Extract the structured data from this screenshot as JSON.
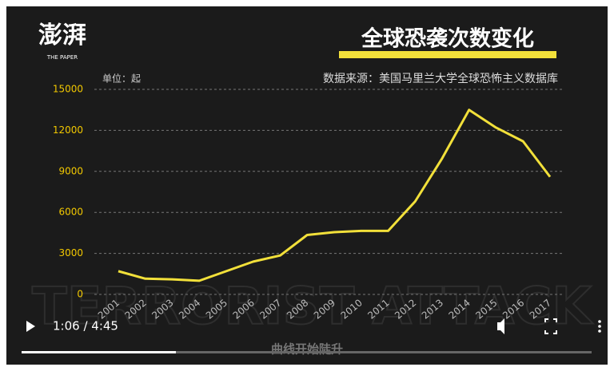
{
  "logo": {
    "name": "澎湃",
    "subtitle": "THE PAPER"
  },
  "chart_data": {
    "type": "line",
    "title": "全球恐袭次数变化",
    "unit": "单位：起",
    "source": "数据来源：美国马里兰大学全球恐怖主义数据库",
    "categories": [
      "2001",
      "2002",
      "2003",
      "2004",
      "2005",
      "2006",
      "2007",
      "2008",
      "2009",
      "2010",
      "2011",
      "2012",
      "2013",
      "2014",
      "2015",
      "2016",
      "2017"
    ],
    "values": [
      1700,
      1150,
      1100,
      1000,
      1700,
      2400,
      2850,
      4350,
      4550,
      4650,
      4650,
      6800,
      9950,
      13500,
      12200,
      11200,
      8600
    ],
    "color": "#f2e03a",
    "ylim": [
      0,
      15000
    ],
    "yticks": [
      0,
      3000,
      6000,
      9000,
      12000,
      15000
    ],
    "grid": true
  },
  "background_text": "TERRORIST ATTACK",
  "caption": "曲线开始陡升",
  "player": {
    "time": "1:06 / 4:45"
  }
}
